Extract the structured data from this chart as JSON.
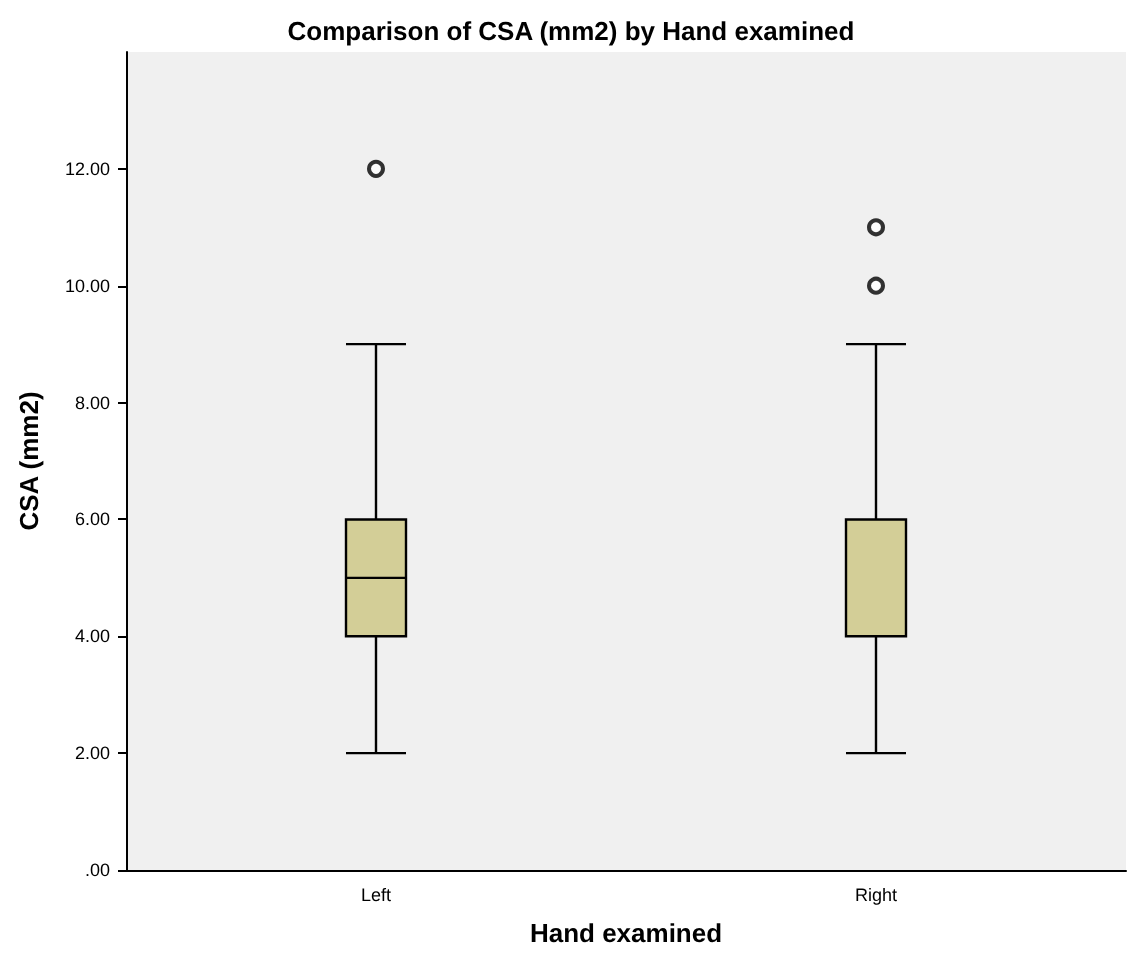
{
  "chart_data": {
    "type": "box",
    "title": "Comparison of CSA (mm2) by Hand examined",
    "xlabel": "Hand examined",
    "ylabel": "CSA (mm2)",
    "categories": [
      "Left",
      "Right"
    ],
    "color": "#d3ce97",
    "marker": "circle",
    "boxes": [
      {
        "low": 2,
        "q1": 4,
        "median": 5,
        "q3": 6,
        "high": 9,
        "outliers": [
          12
        ]
      },
      {
        "low": 2,
        "q1": 4,
        "median": 6,
        "q3": 6,
        "high": 9,
        "outliers": [
          10,
          11
        ]
      }
    ],
    "ylim": [
      0,
      14
    ],
    "yticks": [
      {
        "value": 0,
        "label": ".00"
      },
      {
        "value": 2,
        "label": "2.00"
      },
      {
        "value": 4,
        "label": "4.00"
      },
      {
        "value": 6,
        "label": "6.00"
      },
      {
        "value": 8,
        "label": "8.00"
      },
      {
        "value": 10,
        "label": "10.00"
      },
      {
        "value": 12,
        "label": "12.00"
      }
    ]
  }
}
